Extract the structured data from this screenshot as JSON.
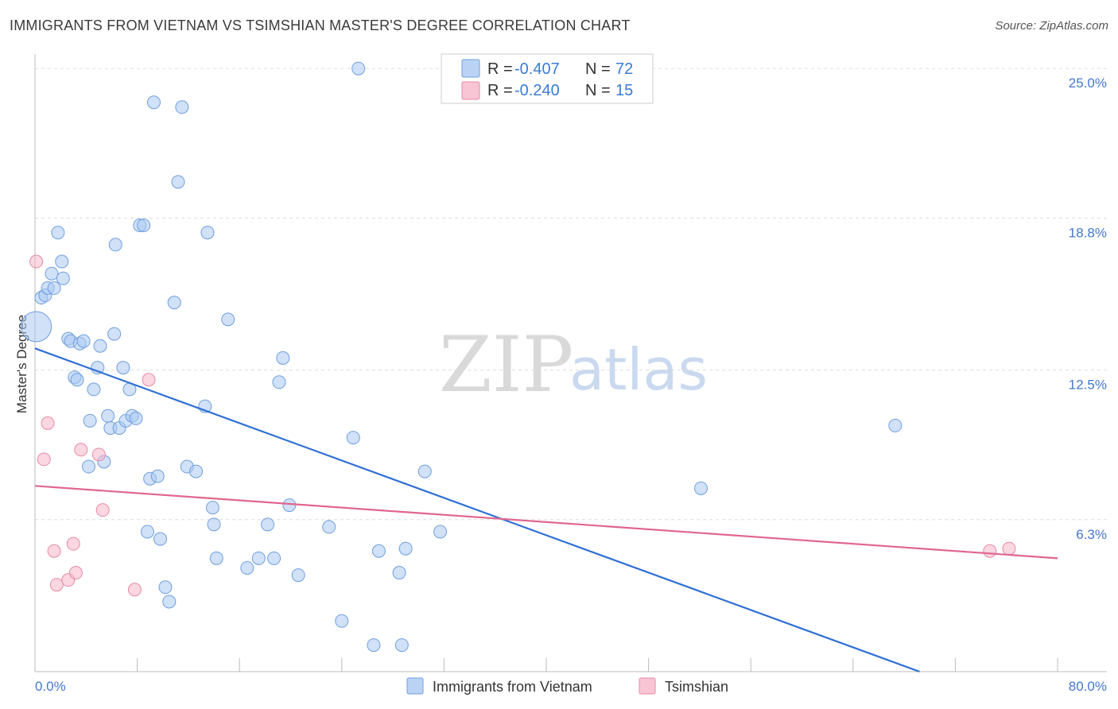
{
  "header": {
    "title": "IMMIGRANTS FROM VIETNAM VS TSIMSHIAN MASTER'S DEGREE CORRELATION CHART",
    "source": "Source: ZipAtlas.com"
  },
  "watermark": {
    "zip": "ZIP",
    "atlas": "atlas"
  },
  "legend_box": {
    "rows": [
      {
        "r_label": "R =",
        "r_value": "-0.407",
        "n_label": "N =",
        "n_value": "72",
        "color": "#a9c8f2"
      },
      {
        "r_label": "R =",
        "r_value": "-0.240",
        "n_label": "N =",
        "n_value": "15",
        "color": "#f6b6c9"
      }
    ]
  },
  "bottom_legend": [
    "Immigrants from Vietnam",
    "Tsimshian"
  ],
  "chart_data": {
    "type": "scatter",
    "title": "IMMIGRANTS FROM VIETNAM VS TSIMSHIAN MASTER'S DEGREE CORRELATION CHART",
    "xlabel": "",
    "ylabel": "Master's Degree",
    "xlim": [
      0,
      80
    ],
    "ylim": [
      0,
      25.6
    ],
    "x_tick_labels": [
      "0.0%",
      "80.0%"
    ],
    "y_ticks": [
      6.3,
      12.5,
      18.8,
      25.0
    ],
    "y_tick_labels": [
      "6.3%",
      "12.5%",
      "18.8%",
      "25.0%"
    ],
    "grid": true,
    "series": [
      {
        "name": "Immigrants from Vietnam",
        "color": "#a9c8f2",
        "stroke": "#6f9fdc",
        "trend": {
          "x": [
            0,
            69.2
          ],
          "y": [
            13.4,
            0
          ],
          "color": "#2f6fd4"
        },
        "points": [
          {
            "x": 0.1,
            "y": 14.3,
            "big": true
          },
          {
            "x": 0.5,
            "y": 15.5
          },
          {
            "x": 0.8,
            "y": 15.6
          },
          {
            "x": 1.0,
            "y": 15.9
          },
          {
            "x": 1.3,
            "y": 16.5
          },
          {
            "x": 1.5,
            "y": 15.9
          },
          {
            "x": 1.8,
            "y": 18.2
          },
          {
            "x": 2.1,
            "y": 17.0
          },
          {
            "x": 2.2,
            "y": 16.3
          },
          {
            "x": 2.6,
            "y": 13.8
          },
          {
            "x": 2.8,
            "y": 13.7
          },
          {
            "x": 3.1,
            "y": 12.2
          },
          {
            "x": 3.3,
            "y": 12.1
          },
          {
            "x": 3.5,
            "y": 13.6
          },
          {
            "x": 3.8,
            "y": 13.7
          },
          {
            "x": 4.2,
            "y": 8.5
          },
          {
            "x": 4.3,
            "y": 10.4
          },
          {
            "x": 4.6,
            "y": 11.7
          },
          {
            "x": 4.9,
            "y": 12.6
          },
          {
            "x": 5.1,
            "y": 13.5
          },
          {
            "x": 5.4,
            "y": 8.7
          },
          {
            "x": 5.7,
            "y": 10.6
          },
          {
            "x": 5.9,
            "y": 10.1
          },
          {
            "x": 6.2,
            "y": 14.0
          },
          {
            "x": 6.3,
            "y": 17.7
          },
          {
            "x": 6.6,
            "y": 10.1
          },
          {
            "x": 6.9,
            "y": 12.6
          },
          {
            "x": 7.1,
            "y": 10.4
          },
          {
            "x": 7.4,
            "y": 11.7
          },
          {
            "x": 7.6,
            "y": 10.6
          },
          {
            "x": 7.9,
            "y": 10.5
          },
          {
            "x": 8.2,
            "y": 18.5
          },
          {
            "x": 8.5,
            "y": 18.5
          },
          {
            "x": 8.8,
            "y": 5.8
          },
          {
            "x": 9.0,
            "y": 8.0
          },
          {
            "x": 9.3,
            "y": 23.6
          },
          {
            "x": 9.6,
            "y": 8.1
          },
          {
            "x": 9.8,
            "y": 5.5
          },
          {
            "x": 10.2,
            "y": 3.5
          },
          {
            "x": 10.5,
            "y": 2.9
          },
          {
            "x": 10.9,
            "y": 15.3
          },
          {
            "x": 11.2,
            "y": 20.3
          },
          {
            "x": 11.5,
            "y": 23.4
          },
          {
            "x": 11.9,
            "y": 8.5
          },
          {
            "x": 12.6,
            "y": 8.3
          },
          {
            "x": 13.3,
            "y": 11.0
          },
          {
            "x": 13.5,
            "y": 18.2
          },
          {
            "x": 13.9,
            "y": 6.8
          },
          {
            "x": 14.0,
            "y": 6.1
          },
          {
            "x": 14.2,
            "y": 4.7
          },
          {
            "x": 15.1,
            "y": 14.6
          },
          {
            "x": 16.6,
            "y": 4.3
          },
          {
            "x": 17.5,
            "y": 4.7
          },
          {
            "x": 18.2,
            "y": 6.1
          },
          {
            "x": 18.7,
            "y": 4.7
          },
          {
            "x": 19.1,
            "y": 12.0
          },
          {
            "x": 19.4,
            "y": 13.0
          },
          {
            "x": 19.9,
            "y": 6.9
          },
          {
            "x": 20.6,
            "y": 4.0
          },
          {
            "x": 23.0,
            "y": 6.0
          },
          {
            "x": 24.0,
            "y": 2.1
          },
          {
            "x": 24.9,
            "y": 9.7
          },
          {
            "x": 25.3,
            "y": 25.0
          },
          {
            "x": 26.5,
            "y": 1.1
          },
          {
            "x": 26.9,
            "y": 5.0
          },
          {
            "x": 28.5,
            "y": 4.1
          },
          {
            "x": 28.7,
            "y": 1.1
          },
          {
            "x": 29.0,
            "y": 5.1
          },
          {
            "x": 30.5,
            "y": 8.3
          },
          {
            "x": 31.7,
            "y": 5.8
          },
          {
            "x": 52.1,
            "y": 7.6
          },
          {
            "x": 67.3,
            "y": 10.2
          }
        ]
      },
      {
        "name": "Tsimshian",
        "color": "#f6b6c9",
        "stroke": "#e68aa7",
        "trend": {
          "x": [
            0,
            80
          ],
          "y": [
            7.7,
            4.7
          ],
          "color": "#e0668d"
        },
        "points": [
          {
            "x": 0.1,
            "y": 17.0
          },
          {
            "x": 0.7,
            "y": 8.8
          },
          {
            "x": 1.0,
            "y": 10.3
          },
          {
            "x": 1.5,
            "y": 5.0
          },
          {
            "x": 1.7,
            "y": 3.6
          },
          {
            "x": 2.6,
            "y": 3.8
          },
          {
            "x": 3.0,
            "y": 5.3
          },
          {
            "x": 3.2,
            "y": 4.1
          },
          {
            "x": 3.6,
            "y": 9.2
          },
          {
            "x": 5.0,
            "y": 9.0
          },
          {
            "x": 5.3,
            "y": 6.7
          },
          {
            "x": 7.8,
            "y": 3.4
          },
          {
            "x": 8.9,
            "y": 12.1
          },
          {
            "x": 74.7,
            "y": 5.0
          },
          {
            "x": 76.2,
            "y": 5.1
          }
        ]
      }
    ]
  }
}
